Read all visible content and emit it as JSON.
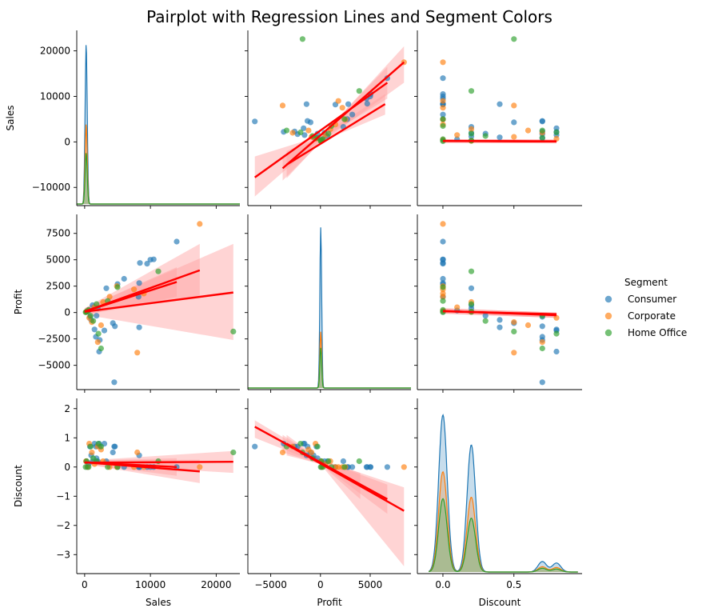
{
  "chart_data": {
    "type": "scatter",
    "title": "Pairplot with Regression Lines and Segment Colors",
    "variables": [
      "Sales",
      "Profit",
      "Discount"
    ],
    "legend": {
      "title": "Segment",
      "placement": "right",
      "entries": [
        {
          "name": "Consumer",
          "color": "#1f77b4"
        },
        {
          "name": "Corporate",
          "color": "#ff7f0e"
        },
        {
          "name": "Home Office",
          "color": "#2ca02c"
        }
      ]
    },
    "regression_color": "#ff0000",
    "ci_color": "#ff9f9f",
    "axes": {
      "Sales": {
        "range": [
          -1200,
          23600
        ],
        "ticks": [
          0,
          10000,
          20000
        ],
        "tick_labels": [
          "0",
          "10000",
          "20000"
        ],
        "y_range": [
          -14000,
          24500
        ],
        "y_ticks": [
          -10000,
          0,
          10000,
          20000
        ],
        "y_tick_labels": [
          "−10000",
          "0",
          "10000",
          "20000"
        ]
      },
      "Profit": {
        "range": [
          -7300,
          9100
        ],
        "ticks": [
          -5000,
          0,
          5000
        ],
        "tick_labels": [
          "−5000",
          "0",
          "5000"
        ],
        "y_range": [
          -7300,
          9300
        ],
        "y_ticks": [
          -5000,
          -2500,
          0,
          2500,
          5000,
          7500
        ],
        "y_tick_labels": [
          "−5000",
          "−2500",
          "0",
          "2500",
          "5000",
          "7500"
        ]
      },
      "Discount": {
        "range": [
          -0.18,
          0.98
        ],
        "ticks": [
          0.0,
          0.5
        ],
        "tick_labels": [
          "0.0",
          "0.5"
        ],
        "y_range": [
          -3.65,
          2.35
        ],
        "y_ticks": [
          -3,
          -2,
          -1,
          0,
          1,
          2
        ],
        "y_tick_labels": [
          "−3",
          "−2",
          "−1",
          "0",
          "1",
          "2"
        ]
      }
    },
    "points": [
      {
        "segment": "Consumer",
        "sales": 14000,
        "profit": 6720,
        "discount": 0.0
      },
      {
        "segment": "Consumer",
        "sales": 10500,
        "profit": 5040,
        "discount": 0.0
      },
      {
        "segment": "Consumer",
        "sales": 10000,
        "profit": 5000,
        "discount": 0.0
      },
      {
        "segment": "Consumer",
        "sales": 9500,
        "profit": 4630,
        "discount": 0.0
      },
      {
        "segment": "Consumer",
        "sales": 8300,
        "profit": 2800,
        "discount": 0.0
      },
      {
        "segment": "Consumer",
        "sales": 8200,
        "profit": 1500,
        "discount": 0.0
      },
      {
        "segment": "Consumer",
        "sales": 8300,
        "profit": -1400,
        "discount": 0.4
      },
      {
        "segment": "Consumer",
        "sales": 8400,
        "profit": 4700,
        "discount": 0.0
      },
      {
        "segment": "Consumer",
        "sales": 6000,
        "profit": 3200,
        "discount": 0.0
      },
      {
        "segment": "Consumer",
        "sales": 4500,
        "profit": -6600,
        "discount": 0.7
      },
      {
        "segment": "Consumer",
        "sales": 4600,
        "profit": -1300,
        "discount": 0.7
      },
      {
        "segment": "Consumer",
        "sales": 3000,
        "profit": -1700,
        "discount": 0.8
      },
      {
        "segment": "Consumer",
        "sales": 2200,
        "profit": -3700,
        "discount": 0.8
      },
      {
        "segment": "Consumer",
        "sales": 4300,
        "profit": -1000,
        "discount": 0.5
      },
      {
        "segment": "Consumer",
        "sales": 2300,
        "profit": -2600,
        "discount": 0.7
      },
      {
        "segment": "Consumer",
        "sales": 3300,
        "profit": 2300,
        "discount": 0.2
      },
      {
        "segment": "Consumer",
        "sales": 5000,
        "profit": 2700,
        "discount": 0.0
      },
      {
        "segment": "Consumer",
        "sales": 1700,
        "profit": -2300,
        "discount": 0.7
      },
      {
        "segment": "Consumer",
        "sales": 1500,
        "profit": -1600,
        "discount": 0.8
      },
      {
        "segment": "Consumer",
        "sales": 1200,
        "profit": 700,
        "discount": 0.2
      },
      {
        "segment": "Consumer",
        "sales": 800,
        "profit": -400,
        "discount": 0.7
      },
      {
        "segment": "Consumer",
        "sales": 600,
        "profit": 200,
        "discount": 0.1
      },
      {
        "segment": "Consumer",
        "sales": 400,
        "profit": 100,
        "discount": 0.0
      },
      {
        "segment": "Consumer",
        "sales": 250,
        "profit": 60,
        "discount": 0.2
      },
      {
        "segment": "Consumer",
        "sales": 1000,
        "profit": -700,
        "discount": 0.4
      },
      {
        "segment": "Consumer",
        "sales": 2000,
        "profit": 400,
        "discount": 0.2
      },
      {
        "segment": "Consumer",
        "sales": 1800,
        "profit": -300,
        "discount": 0.3
      },
      {
        "segment": "Corporate",
        "sales": 17500,
        "profit": 8400,
        "discount": 0.0
      },
      {
        "segment": "Corporate",
        "sales": 8000,
        "profit": -3800,
        "discount": 0.5
      },
      {
        "segment": "Corporate",
        "sales": 7500,
        "profit": 2200,
        "discount": 0.0
      },
      {
        "segment": "Corporate",
        "sales": 9000,
        "profit": 1800,
        "discount": 0.0
      },
      {
        "segment": "Corporate",
        "sales": 4900,
        "profit": 2500,
        "discount": 0.0
      },
      {
        "segment": "Corporate",
        "sales": 2000,
        "profit": -2800,
        "discount": 0.7
      },
      {
        "segment": "Corporate",
        "sales": 2800,
        "profit": 1000,
        "discount": 0.2
      },
      {
        "segment": "Corporate",
        "sales": 1500,
        "profit": 500,
        "discount": 0.1
      },
      {
        "segment": "Corporate",
        "sales": 700,
        "profit": -500,
        "discount": 0.8
      },
      {
        "segment": "Corporate",
        "sales": 450,
        "profit": 150,
        "discount": 0.0
      },
      {
        "segment": "Corporate",
        "sales": 200,
        "profit": 50,
        "discount": 0.2
      },
      {
        "segment": "Corporate",
        "sales": 3800,
        "profit": 1500,
        "discount": 0.0
      },
      {
        "segment": "Corporate",
        "sales": 1100,
        "profit": -900,
        "discount": 0.5
      },
      {
        "segment": "Corporate",
        "sales": 2500,
        "profit": -1200,
        "discount": 0.6
      },
      {
        "segment": "Home Office",
        "sales": 22600,
        "profit": -1800,
        "discount": 0.5
      },
      {
        "segment": "Home Office",
        "sales": 11200,
        "profit": 3900,
        "discount": 0.2
      },
      {
        "segment": "Home Office",
        "sales": 5000,
        "profit": 2400,
        "discount": 0.0
      },
      {
        "segment": "Home Office",
        "sales": 2500,
        "profit": -3400,
        "discount": 0.7
      },
      {
        "segment": "Home Office",
        "sales": 2100,
        "profit": -2000,
        "discount": 0.8
      },
      {
        "segment": "Home Office",
        "sales": 3500,
        "profit": 1100,
        "discount": 0.0
      },
      {
        "segment": "Home Office",
        "sales": 1800,
        "profit": 800,
        "discount": 0.2
      },
      {
        "segment": "Home Office",
        "sales": 900,
        "profit": -300,
        "discount": 0.7
      },
      {
        "segment": "Home Office",
        "sales": 600,
        "profit": 250,
        "discount": 0.0
      },
      {
        "segment": "Home Office",
        "sales": 300,
        "profit": 90,
        "discount": 0.2
      },
      {
        "segment": "Home Office",
        "sales": 150,
        "profit": 30,
        "discount": 0.0
      },
      {
        "segment": "Home Office",
        "sales": 1300,
        "profit": -800,
        "discount": 0.3
      }
    ],
    "regressions": {
      "Sales~Profit": [
        {
          "segment": "Consumer",
          "x": [
            -6600,
            6720
          ],
          "y": [
            -7800,
            13000
          ],
          "ci": [
            [
              -6600,
              -12000,
              -3200
            ],
            [
              0,
              500,
              1300
            ],
            [
              6720,
              9500,
              16500
            ]
          ]
        },
        {
          "segment": "Corporate",
          "x": [
            -3800,
            8400
          ],
          "y": [
            -5800,
            17500
          ],
          "ci": [
            [
              -3800,
              -8500,
              -3000
            ],
            [
              0,
              -200,
              1000
            ],
            [
              8400,
              13000,
              21000
            ]
          ]
        },
        {
          "segment": "Home Office",
          "x": [
            -3400,
            6500
          ],
          "y": [
            -5000,
            8300
          ],
          "ci": [
            [
              -3400,
              -8000,
              -2000
            ],
            [
              0,
              0,
              1200
            ],
            [
              6500,
              6000,
              10500
            ]
          ]
        }
      ],
      "Sales~Discount": [
        {
          "segment": "Consumer",
          "x": [
            0.0,
            0.8
          ],
          "y": [
            200,
            100
          ],
          "ci": [
            [
              0.0,
              -200,
              600
            ],
            [
              0.8,
              -300,
              500
            ]
          ]
        },
        {
          "segment": "Corporate",
          "x": [
            0.0,
            0.8
          ],
          "y": [
            220,
            120
          ],
          "ci": [
            [
              0.0,
              -200,
              600
            ],
            [
              0.8,
              -300,
              500
            ]
          ]
        },
        {
          "segment": "Home Office",
          "x": [
            0.0,
            0.8
          ],
          "y": [
            180,
            140
          ],
          "ci": [
            [
              0.0,
              -200,
              600
            ],
            [
              0.8,
              -300,
              500
            ]
          ]
        }
      ],
      "Profit~Sales": [
        {
          "segment": "Consumer",
          "x": [
            0,
            14000
          ],
          "y": [
            100,
            2900
          ],
          "ci": [
            [
              0,
              -200,
              400
            ],
            [
              14000,
              1500,
              4300
            ]
          ]
        },
        {
          "segment": "Corporate",
          "x": [
            0,
            17500
          ],
          "y": [
            100,
            4000
          ],
          "ci": [
            [
              0,
              -200,
              400
            ],
            [
              17500,
              1600,
              6500
            ]
          ]
        },
        {
          "segment": "Home Office",
          "x": [
            0,
            22600
          ],
          "y": [
            80,
            1900
          ],
          "ci": [
            [
              0,
              -200,
              400
            ],
            [
              22600,
              -2600,
              6500
            ]
          ]
        }
      ],
      "Profit~Discount": [
        {
          "segment": "Consumer",
          "x": [
            0.0,
            0.8
          ],
          "y": [
            150,
            -250
          ],
          "ci": [
            [
              0.0,
              -100,
              400
            ],
            [
              0.8,
              -500,
              0
            ]
          ]
        },
        {
          "segment": "Corporate",
          "x": [
            0.0,
            0.8
          ],
          "y": [
            130,
            -200
          ],
          "ci": [
            [
              0.0,
              -100,
              400
            ],
            [
              0.8,
              -500,
              0
            ]
          ]
        },
        {
          "segment": "Home Office",
          "x": [
            0.0,
            0.8
          ],
          "y": [
            120,
            -150
          ],
          "ci": [
            [
              0.0,
              -100,
              400
            ],
            [
              0.8,
              -500,
              0
            ]
          ]
        }
      ],
      "Discount~Sales": [
        {
          "segment": "Consumer",
          "x": [
            0,
            14000
          ],
          "y": [
            0.16,
            0.0
          ],
          "ci": [
            [
              0,
              0.1,
              0.22
            ],
            [
              14000,
              -0.3,
              0.3
            ]
          ]
        },
        {
          "segment": "Corporate",
          "x": [
            0,
            17500
          ],
          "y": [
            0.16,
            -0.15
          ],
          "ci": [
            [
              0,
              0.1,
              0.22
            ],
            [
              17500,
              -0.55,
              0.25
            ]
          ]
        },
        {
          "segment": "Home Office",
          "x": [
            0,
            22600
          ],
          "y": [
            0.15,
            0.18
          ],
          "ci": [
            [
              0,
              0.1,
              0.22
            ],
            [
              22600,
              -0.2,
              0.55
            ]
          ]
        }
      ],
      "Discount~Profit": [
        {
          "segment": "Consumer",
          "x": [
            -6600,
            6720
          ],
          "y": [
            1.38,
            -1.1
          ],
          "ci": [
            [
              -6600,
              1.0,
              1.6
            ],
            [
              0,
              0.1,
              0.25
            ],
            [
              6720,
              -1.6,
              -0.6
            ]
          ]
        },
        {
          "segment": "Corporate",
          "x": [
            -3800,
            8400
          ],
          "y": [
            0.85,
            -1.5
          ],
          "ci": [
            [
              -3800,
              0.5,
              1.1
            ],
            [
              0,
              0.1,
              0.25
            ],
            [
              8400,
              -3.4,
              -0.7
            ]
          ]
        },
        {
          "segment": "Home Office",
          "x": [
            -3400,
            4000
          ],
          "y": [
            0.8,
            -0.6
          ],
          "ci": [
            [
              -3400,
              0.4,
              1.1
            ],
            [
              0,
              0.1,
              0.25
            ],
            [
              4000,
              -1.1,
              -0.2
            ]
          ]
        }
      ]
    },
    "kde_peaks": {
      "Sales": [
        {
          "segment": "Consumer",
          "peak": 1.0
        },
        {
          "segment": "Corporate",
          "peak": 0.5
        },
        {
          "segment": "Home Office",
          "peak": 0.32
        }
      ],
      "Profit": [
        {
          "segment": "Consumer",
          "peak": 1.0
        },
        {
          "segment": "Corporate",
          "peak": 0.35
        },
        {
          "segment": "Home Office",
          "peak": 0.25
        }
      ],
      "Discount": [
        {
          "segment": "Consumer",
          "modes": [
            [
              0.0,
              2.1
            ],
            [
              0.2,
              1.7
            ],
            [
              0.7,
              0.14
            ],
            [
              0.8,
              0.12
            ]
          ]
        },
        {
          "segment": "Corporate",
          "modes": [
            [
              0.0,
              1.34
            ],
            [
              0.2,
              1.0
            ],
            [
              0.7,
              0.07
            ],
            [
              0.8,
              0.06
            ]
          ]
        },
        {
          "segment": "Home Office",
          "modes": [
            [
              0.0,
              0.98
            ],
            [
              0.2,
              0.72
            ],
            [
              0.7,
              0.05
            ],
            [
              0.8,
              0.04
            ]
          ]
        }
      ]
    }
  }
}
